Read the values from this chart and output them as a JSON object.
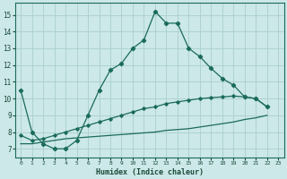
{
  "xlabel": "Humidex (Indice chaleur)",
  "xlim": [
    -0.5,
    23.5
  ],
  "ylim": [
    6.5,
    15.7
  ],
  "xticks": [
    0,
    1,
    2,
    3,
    4,
    5,
    6,
    7,
    8,
    9,
    10,
    11,
    12,
    13,
    14,
    15,
    16,
    17,
    18,
    19,
    20,
    21,
    22,
    23
  ],
  "yticks": [
    7,
    8,
    9,
    10,
    11,
    12,
    13,
    14,
    15
  ],
  "background_color": "#cce8e8",
  "grid_color": "#aacece",
  "line_color": "#1a6b5a",
  "line1_x": [
    0,
    1,
    2,
    3,
    4,
    5,
    6,
    7,
    8,
    9,
    10,
    11,
    12,
    13,
    14,
    15,
    16,
    17,
    18,
    19,
    20,
    21,
    22
  ],
  "line1_y": [
    10.5,
    8.0,
    7.3,
    7.0,
    7.0,
    7.5,
    9.0,
    10.5,
    11.7,
    12.1,
    13.0,
    13.5,
    15.2,
    14.5,
    14.5,
    13.0,
    12.5,
    11.8,
    11.2,
    10.8,
    10.1,
    10.0,
    9.5
  ],
  "line2_x": [
    0,
    1,
    2,
    3,
    4,
    5,
    6,
    7,
    8,
    9,
    10,
    11,
    12,
    13,
    14,
    15,
    16,
    17,
    18,
    19,
    20,
    21,
    22
  ],
  "line2_y": [
    7.8,
    7.5,
    7.6,
    7.8,
    8.0,
    8.2,
    8.4,
    8.6,
    8.8,
    9.0,
    9.2,
    9.4,
    9.5,
    9.7,
    9.8,
    9.9,
    10.0,
    10.05,
    10.1,
    10.15,
    10.1,
    10.0,
    9.5
  ],
  "line3_x": [
    0,
    1,
    2,
    3,
    4,
    5,
    6,
    7,
    8,
    9,
    10,
    11,
    12,
    13,
    14,
    15,
    16,
    17,
    18,
    19,
    20,
    21,
    22
  ],
  "line3_y": [
    7.3,
    7.3,
    7.4,
    7.5,
    7.6,
    7.65,
    7.7,
    7.75,
    7.8,
    7.85,
    7.9,
    7.95,
    8.0,
    8.1,
    8.15,
    8.2,
    8.3,
    8.4,
    8.5,
    8.6,
    8.75,
    8.85,
    9.0
  ]
}
